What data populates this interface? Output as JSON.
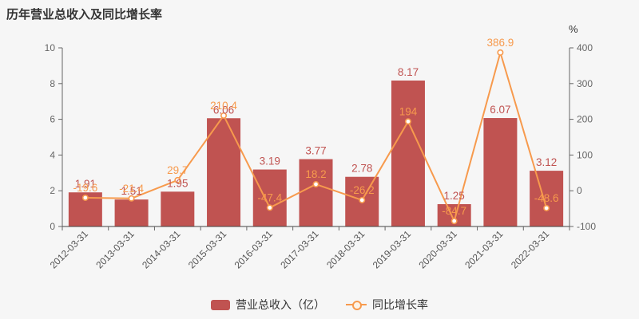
{
  "title": "历年营业总收入及同比增长率",
  "legend": {
    "bar_label": "营业总收入（亿）",
    "line_label": "同比增长率"
  },
  "colors": {
    "background": "#f6f6f6",
    "bar": "#c05351",
    "line": "#f79a4d",
    "marker_fill": "#ffffff",
    "axis": "#666666",
    "tick_text": "#666666",
    "category_text": "#555555",
    "title_text": "#333333"
  },
  "chart_data": {
    "type": "bar",
    "subtype": "bar+line dual-axis",
    "title": "历年营业总收入及同比增长率",
    "categories": [
      "2012-03-31",
      "2013-03-31",
      "2014-03-31",
      "2015-03-31",
      "2016-03-31",
      "2017-03-31",
      "2018-03-31",
      "2019-03-31",
      "2020-03-31",
      "2021-03-31",
      "2022-03-31"
    ],
    "series": [
      {
        "name": "营业总收入（亿）",
        "type": "bar",
        "axis": "left",
        "values": [
          1.91,
          1.51,
          1.95,
          6.06,
          3.19,
          3.77,
          2.78,
          8.17,
          1.25,
          6.07,
          3.12
        ]
      },
      {
        "name": "同比增长率",
        "type": "line",
        "axis": "right",
        "values": [
          -19.6,
          -21.4,
          29.7,
          210.4,
          -47.4,
          18.2,
          -26.2,
          194,
          -84.7,
          386.9,
          -48.6
        ]
      }
    ],
    "left_axis": {
      "min": 0,
      "max": 10,
      "ticks": [
        0,
        2,
        4,
        6,
        8,
        10
      ]
    },
    "right_axis": {
      "min": -100,
      "max": 400,
      "ticks": [
        -100,
        0,
        100,
        200,
        300,
        400
      ],
      "unit": "%"
    },
    "grid": false,
    "legend_position": "bottom-center",
    "x_label_rotation": -45
  }
}
